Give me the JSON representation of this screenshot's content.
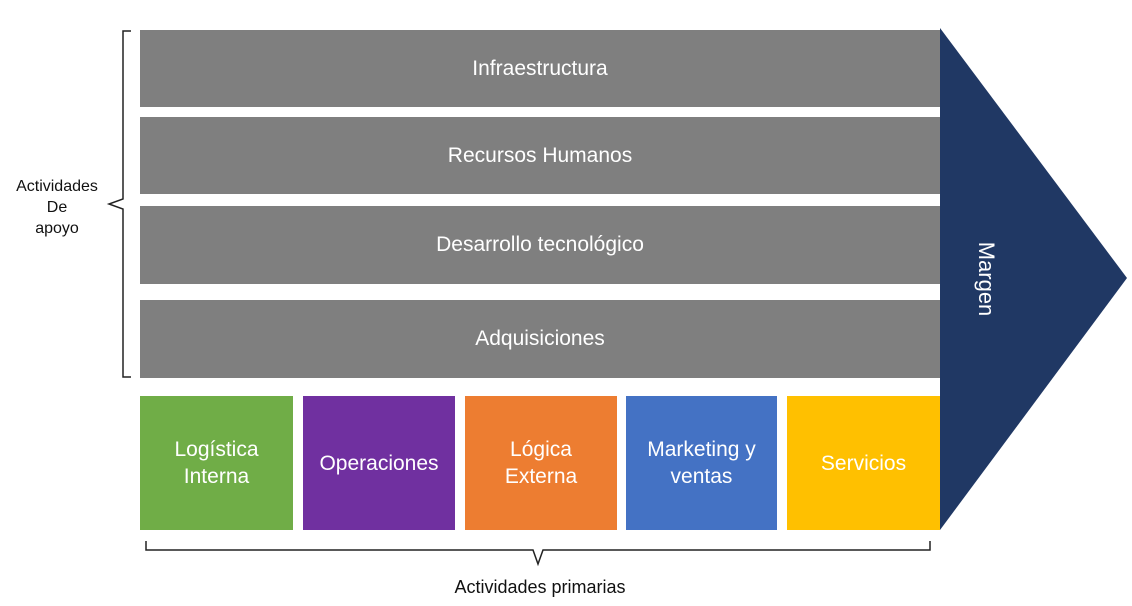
{
  "support_activities": {
    "label": "Actividades\nDe\napoyo",
    "items": [
      "Infraestructura",
      "Recursos Humanos",
      "Desarrollo tecnológico",
      "Adquisiciones"
    ],
    "color": "#7f7f7f"
  },
  "primary_activities": {
    "label": "Actividades primarias",
    "items": [
      {
        "label": "Logística\nInterna",
        "color": "#70ad47"
      },
      {
        "label": "Operaciones",
        "color": "#7030a0"
      },
      {
        "label": "Lógica\nExterna",
        "color": "#ed7d31"
      },
      {
        "label": "Marketing y\nventas",
        "color": "#4472c4"
      },
      {
        "label": "Servicios",
        "color": "#ffc000"
      }
    ]
  },
  "margin": {
    "label": "Margen",
    "color": "#203864"
  }
}
